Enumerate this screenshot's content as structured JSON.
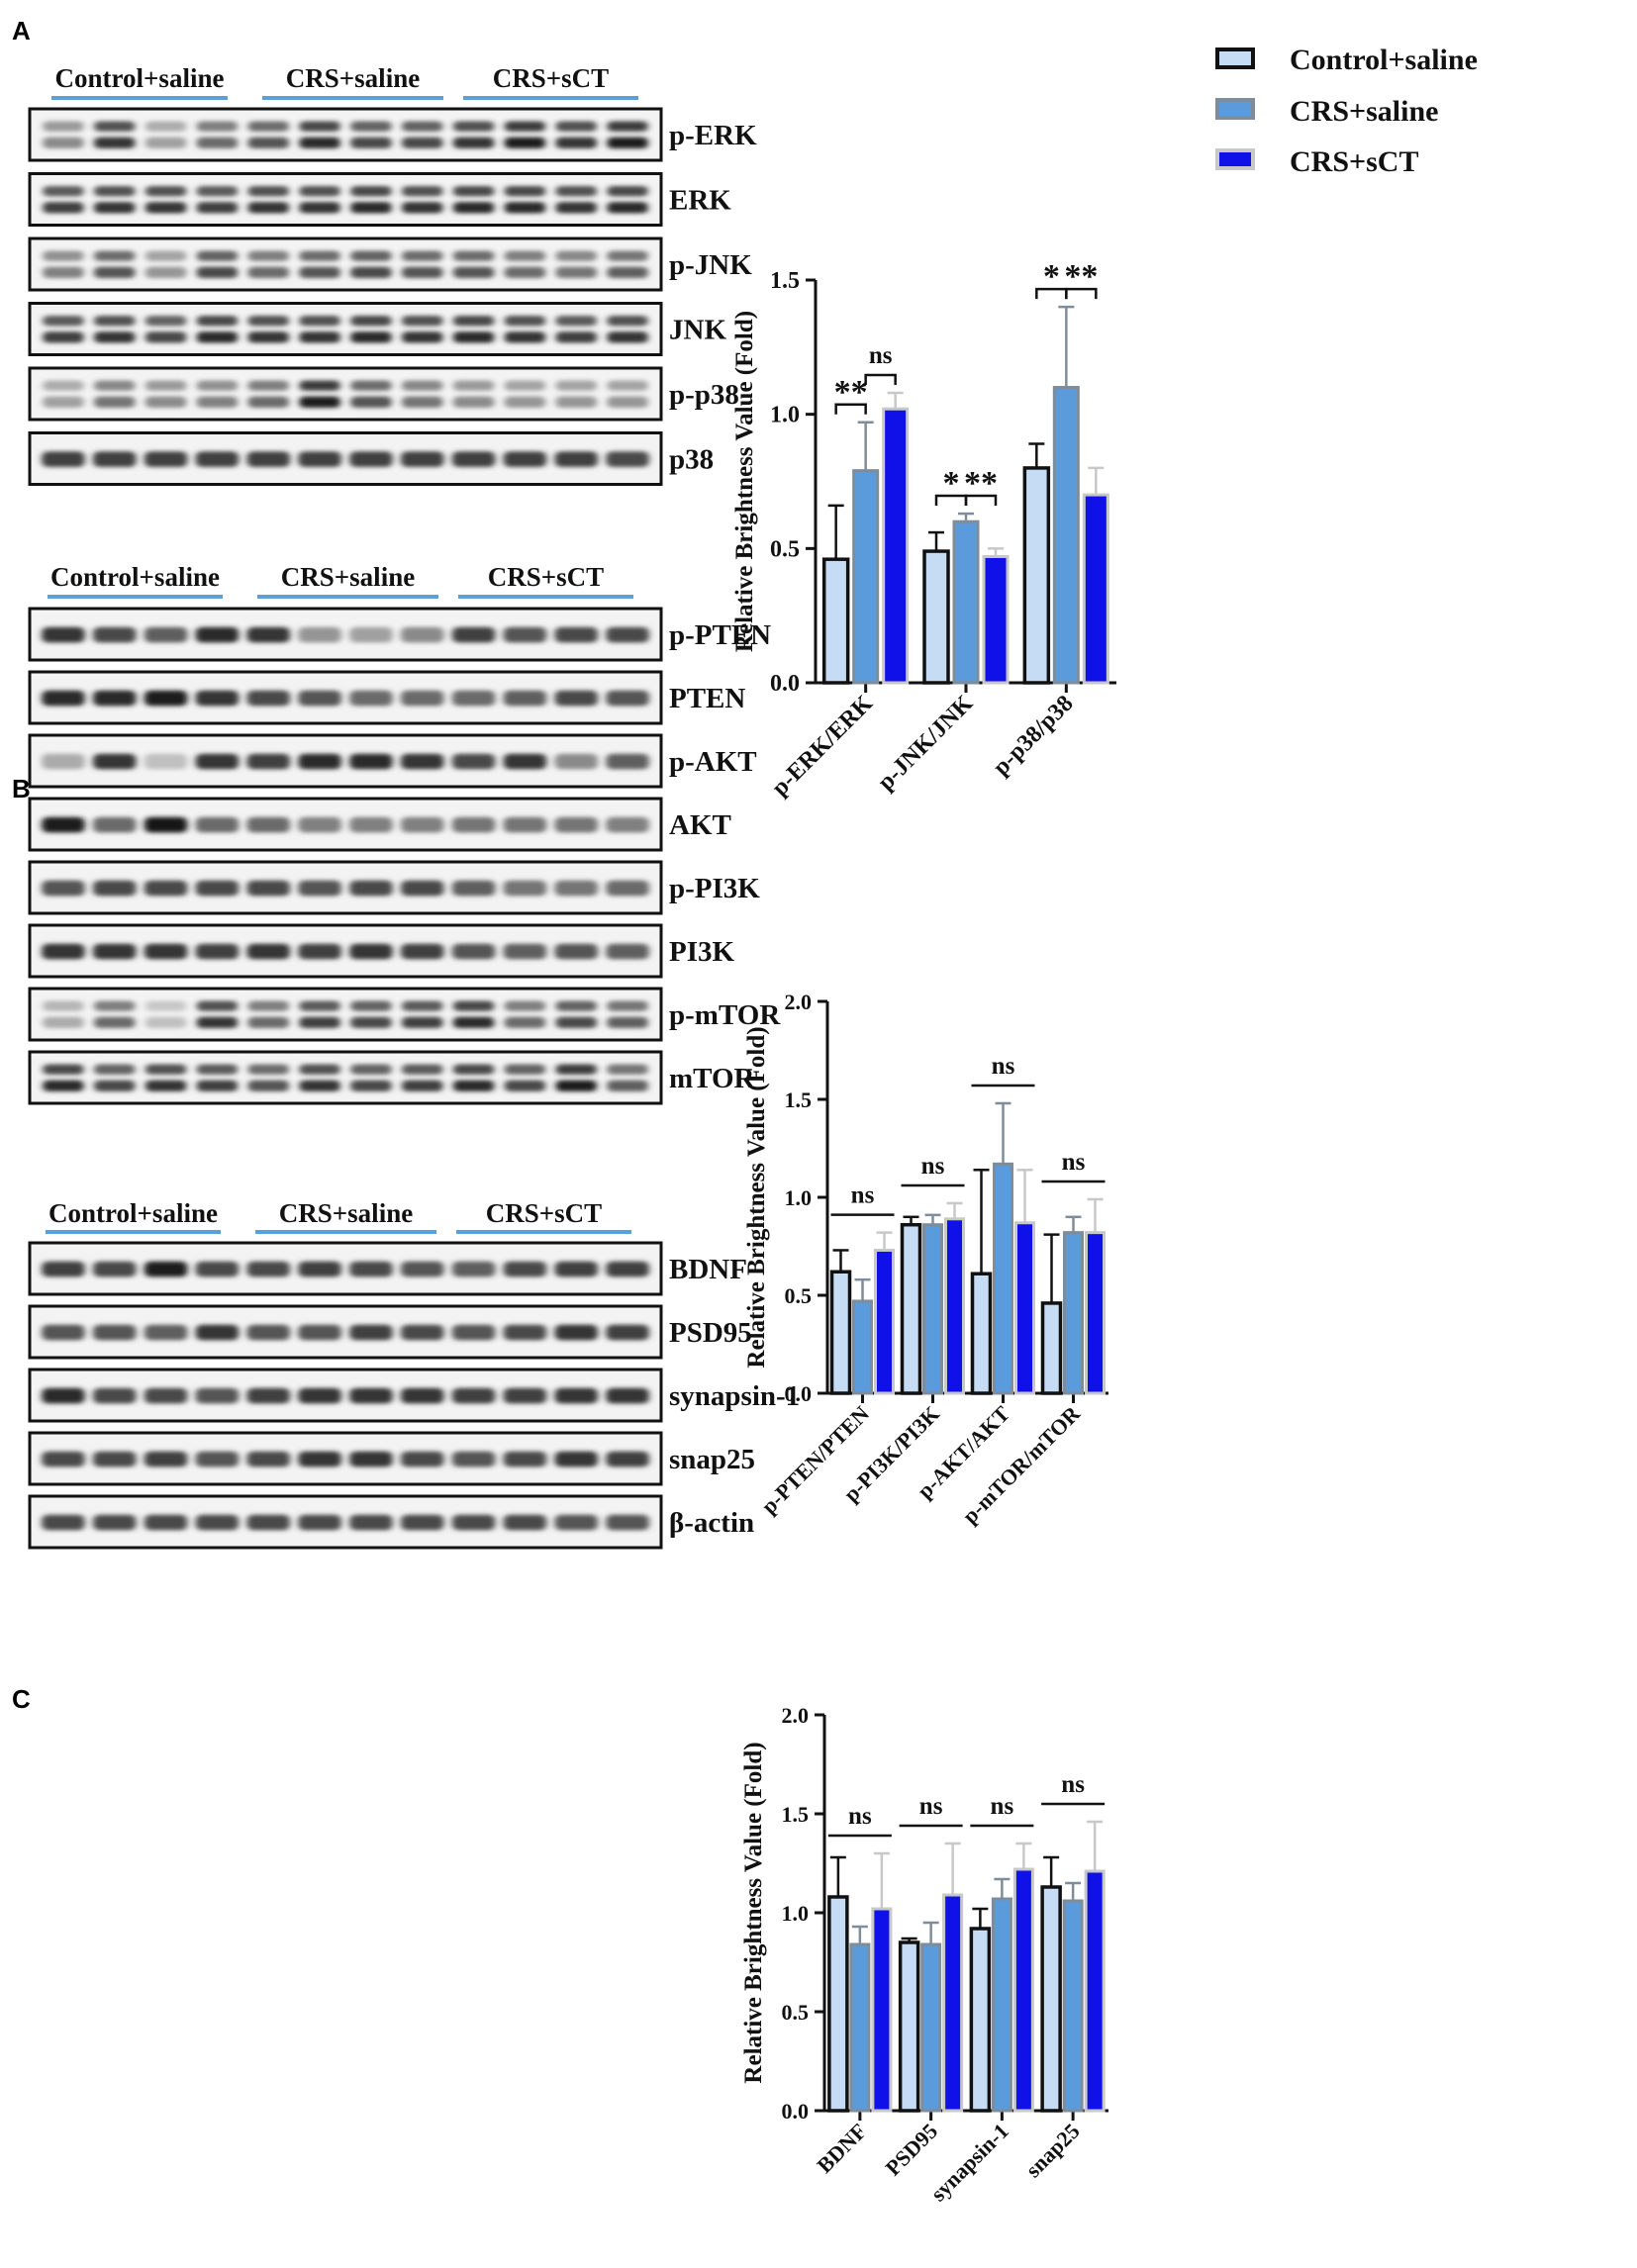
{
  "panels": [
    {
      "letter": "A",
      "groups": [
        "Control+saline",
        "CRS+saline",
        "CRS+sCT"
      ],
      "blots": [
        {
          "label": "p-ERK",
          "bands": 2,
          "intensity": [
            0.45,
            0.85,
            0.35,
            0.6,
            0.7,
            0.9,
            0.75,
            0.75,
            0.85,
            0.95,
            0.85,
            0.95
          ]
        },
        {
          "label": "ERK",
          "bands": 2,
          "intensity": [
            0.8,
            0.85,
            0.85,
            0.8,
            0.85,
            0.85,
            0.9,
            0.85,
            0.9,
            0.9,
            0.85,
            0.9
          ]
        },
        {
          "label": "p-JNK",
          "bands": 2,
          "intensity": [
            0.5,
            0.7,
            0.4,
            0.75,
            0.6,
            0.7,
            0.75,
            0.7,
            0.7,
            0.6,
            0.55,
            0.65
          ]
        },
        {
          "label": "JNK",
          "bands": 2,
          "intensity": [
            0.8,
            0.85,
            0.75,
            0.9,
            0.85,
            0.85,
            0.9,
            0.85,
            0.9,
            0.85,
            0.8,
            0.85
          ]
        },
        {
          "label": "p-p38",
          "bands": 2,
          "intensity": [
            0.35,
            0.55,
            0.45,
            0.5,
            0.6,
            0.95,
            0.7,
            0.55,
            0.45,
            0.4,
            0.4,
            0.4
          ]
        },
        {
          "label": "p38",
          "bands": 1,
          "intensity": [
            0.8,
            0.8,
            0.8,
            0.8,
            0.8,
            0.8,
            0.8,
            0.8,
            0.8,
            0.8,
            0.8,
            0.75
          ]
        }
      ]
    },
    {
      "letter": "B",
      "groups": [
        "Control+saline",
        "CRS+saline",
        "CRS+sCT"
      ],
      "blots": [
        {
          "label": "p-PTEN",
          "bands": 1,
          "intensity": [
            0.85,
            0.75,
            0.65,
            0.9,
            0.85,
            0.4,
            0.35,
            0.45,
            0.8,
            0.7,
            0.75,
            0.75
          ]
        },
        {
          "label": "PTEN",
          "bands": 1,
          "intensity": [
            0.9,
            0.9,
            0.95,
            0.85,
            0.75,
            0.7,
            0.6,
            0.6,
            0.6,
            0.65,
            0.75,
            0.7
          ]
        },
        {
          "label": "p-AKT",
          "bands": 1,
          "intensity": [
            0.3,
            0.85,
            0.2,
            0.85,
            0.8,
            0.9,
            0.9,
            0.85,
            0.75,
            0.85,
            0.45,
            0.65
          ]
        },
        {
          "label": "AKT",
          "bands": 1,
          "intensity": [
            0.95,
            0.6,
            1.0,
            0.6,
            0.6,
            0.5,
            0.5,
            0.5,
            0.55,
            0.55,
            0.55,
            0.5
          ]
        },
        {
          "label": "p-PI3K",
          "bands": 1,
          "intensity": [
            0.7,
            0.75,
            0.75,
            0.75,
            0.75,
            0.7,
            0.75,
            0.75,
            0.65,
            0.55,
            0.55,
            0.6
          ]
        },
        {
          "label": "PI3K",
          "bands": 1,
          "intensity": [
            0.85,
            0.85,
            0.85,
            0.8,
            0.85,
            0.8,
            0.85,
            0.8,
            0.7,
            0.65,
            0.7,
            0.65
          ]
        },
        {
          "label": "p-mTOR",
          "bands": 2,
          "intensity": [
            0.3,
            0.6,
            0.2,
            0.85,
            0.6,
            0.8,
            0.75,
            0.8,
            0.9,
            0.6,
            0.75,
            0.65
          ]
        },
        {
          "label": "mTOR",
          "bands": 2,
          "intensity": [
            0.9,
            0.75,
            0.85,
            0.8,
            0.7,
            0.85,
            0.75,
            0.8,
            0.9,
            0.75,
            0.95,
            0.65
          ]
        }
      ]
    },
    {
      "letter": "C",
      "groups": [
        "Control+saline",
        "CRS+saline",
        "CRS+sCT"
      ],
      "blots": [
        {
          "label": "BDNF",
          "bands": 1,
          "intensity": [
            0.8,
            0.75,
            0.95,
            0.75,
            0.75,
            0.8,
            0.75,
            0.7,
            0.65,
            0.75,
            0.8,
            0.8
          ]
        },
        {
          "label": "PSD95",
          "bands": 1,
          "intensity": [
            0.7,
            0.7,
            0.65,
            0.85,
            0.7,
            0.7,
            0.8,
            0.75,
            0.7,
            0.75,
            0.85,
            0.8
          ]
        },
        {
          "label": "synapsin-1",
          "bands": 1,
          "intensity": [
            0.9,
            0.75,
            0.75,
            0.7,
            0.8,
            0.85,
            0.85,
            0.85,
            0.8,
            0.8,
            0.85,
            0.85
          ]
        },
        {
          "label": "snap25",
          "bands": 1,
          "intensity": [
            0.75,
            0.75,
            0.8,
            0.7,
            0.75,
            0.85,
            0.85,
            0.75,
            0.7,
            0.75,
            0.85,
            0.8
          ]
        },
        {
          "label": "β-actin",
          "bands": 1,
          "intensity": [
            0.75,
            0.75,
            0.75,
            0.75,
            0.75,
            0.75,
            0.75,
            0.75,
            0.75,
            0.75,
            0.7,
            0.7
          ]
        }
      ]
    }
  ],
  "legend": [
    {
      "label": "Control+saline",
      "fill": "#c6dbf4",
      "stroke": "#111111"
    },
    {
      "label": "CRS+saline",
      "fill": "#5b9bdc",
      "stroke": "#7f8c99"
    },
    {
      "label": "CRS+sCT",
      "fill": "#1010e8",
      "stroke": "#c8c8c8"
    }
  ],
  "chart_data": [
    {
      "type": "bar",
      "panel": "A",
      "categories": [
        "p-ERK/ERK",
        "p-JNK/JNK",
        "p-p38/p38"
      ],
      "series": [
        {
          "name": "Control+saline",
          "values": [
            0.46,
            0.49,
            0.8
          ],
          "errors": [
            0.2,
            0.07,
            0.09
          ]
        },
        {
          "name": "CRS+saline",
          "values": [
            0.79,
            0.6,
            1.1
          ],
          "errors": [
            0.18,
            0.03,
            0.3
          ]
        },
        {
          "name": "CRS+sCT",
          "values": [
            1.02,
            0.47,
            0.7
          ],
          "errors": [
            0.06,
            0.03,
            0.1
          ]
        }
      ],
      "ylabel": "Relative Brightness Value (Fold)",
      "ylim": [
        0,
        1.5
      ],
      "yticks": [
        "0.0",
        "0.5",
        "1.0",
        "1.5"
      ],
      "significance": [
        {
          "category": 0,
          "from": 0,
          "to": 1,
          "label": "**"
        },
        {
          "category": 0,
          "from": 1,
          "to": 2,
          "label": "ns"
        },
        {
          "category": 1,
          "from": 0,
          "to": 1,
          "label": "*"
        },
        {
          "category": 1,
          "from": 1,
          "to": 2,
          "label": "**"
        },
        {
          "category": 2,
          "from": 0,
          "to": 1,
          "label": "*"
        },
        {
          "category": 2,
          "from": 1,
          "to": 2,
          "label": "**"
        }
      ]
    },
    {
      "type": "bar",
      "panel": "B",
      "categories": [
        "p-PTEN/PTEN",
        "p-PI3K/PI3K",
        "p-AKT/AKT",
        "p-mTOR/mTOR"
      ],
      "series": [
        {
          "name": "Control+saline",
          "values": [
            0.62,
            0.86,
            0.61,
            0.46
          ],
          "errors": [
            0.11,
            0.04,
            0.53,
            0.35
          ]
        },
        {
          "name": "CRS+saline",
          "values": [
            0.47,
            0.86,
            1.17,
            0.82
          ],
          "errors": [
            0.11,
            0.05,
            0.31,
            0.08
          ]
        },
        {
          "name": "CRS+sCT",
          "values": [
            0.73,
            0.89,
            0.87,
            0.82
          ],
          "errors": [
            0.09,
            0.08,
            0.27,
            0.17
          ]
        }
      ],
      "ylabel": "Relative Brightness Value (Fold)",
      "ylim": [
        0,
        2.0
      ],
      "yticks": [
        "0.0",
        "0.5",
        "1.0",
        "1.5",
        "2.0"
      ],
      "significance": [
        {
          "category": 0,
          "from": 0,
          "to": 2,
          "label": "ns"
        },
        {
          "category": 1,
          "from": 0,
          "to": 2,
          "label": "ns"
        },
        {
          "category": 2,
          "from": 0,
          "to": 2,
          "label": "ns"
        },
        {
          "category": 3,
          "from": 0,
          "to": 2,
          "label": "ns"
        }
      ]
    },
    {
      "type": "bar",
      "panel": "C",
      "categories": [
        "BDNF",
        "PSD95",
        "synapsin-1",
        "snap25"
      ],
      "series": [
        {
          "name": "Control+saline",
          "values": [
            1.08,
            0.85,
            0.92,
            1.13
          ],
          "errors": [
            0.2,
            0.02,
            0.1,
            0.15
          ]
        },
        {
          "name": "CRS+saline",
          "values": [
            0.84,
            0.84,
            1.07,
            1.06
          ],
          "errors": [
            0.09,
            0.11,
            0.1,
            0.09
          ]
        },
        {
          "name": "CRS+sCT",
          "values": [
            1.02,
            1.09,
            1.22,
            1.21
          ],
          "errors": [
            0.28,
            0.26,
            0.13,
            0.25
          ]
        }
      ],
      "ylabel": "Relative Brightness Value (Fold)",
      "ylim": [
        0,
        2.0
      ],
      "yticks": [
        "0.0",
        "0.5",
        "1.0",
        "1.5",
        "2.0"
      ],
      "significance": [
        {
          "category": 0,
          "from": 0,
          "to": 2,
          "label": "ns"
        },
        {
          "category": 1,
          "from": 0,
          "to": 2,
          "label": "ns"
        },
        {
          "category": 2,
          "from": 0,
          "to": 2,
          "label": "ns"
        },
        {
          "category": 3,
          "from": 0,
          "to": 2,
          "label": "ns"
        }
      ]
    }
  ]
}
